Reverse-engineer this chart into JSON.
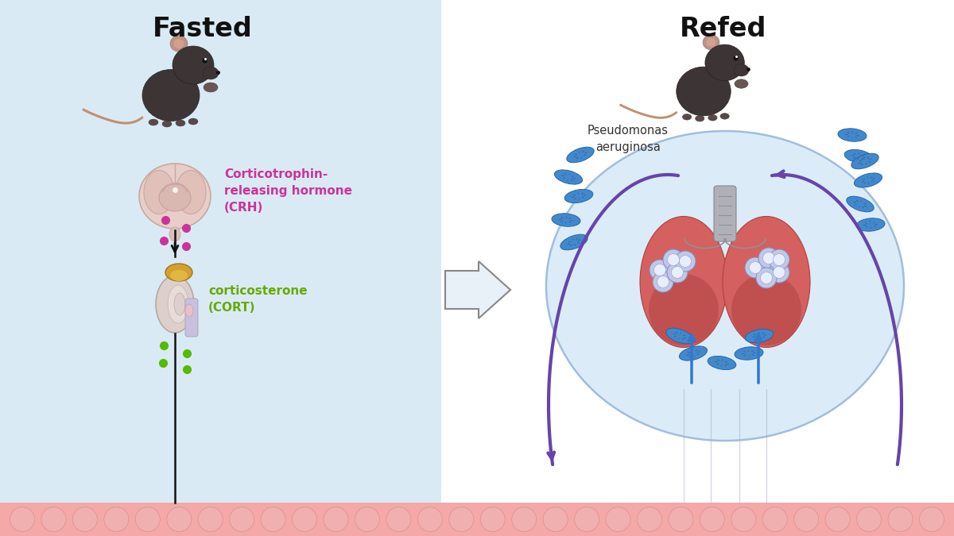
{
  "left_bg_color": "#daeaf5",
  "right_bg_color": "#ffffff",
  "bottom_strip_color": "#f5a8a8",
  "title_left": "Fasted",
  "title_right": "Refed",
  "title_fontsize": 24,
  "title_fontweight": "bold",
  "crh_text": "Corticotrophin-\nreleasing hormone\n(CRH)",
  "crh_color": "#cc3399",
  "cort_text": "corticosterone\n(CORT)",
  "cort_color": "#66aa00",
  "pseudo_text": "Pseudomonas\naeruginosa",
  "pseudo_color": "#333333",
  "pink_dot_color": "#cc3399",
  "green_dot_color": "#55bb00",
  "circle_fill": "#d8eaf8",
  "circle_edge": "#99b8d8",
  "purple_arrow_color": "#6644aa",
  "blue_arrow_color": "#3377cc",
  "bacteria_color": "#4488cc",
  "cell_fill": "#c8d0ee",
  "cell_inner": "#e8eeff",
  "mouse_body": "#3d3535",
  "mouse_ear": "#c09080",
  "mouse_tail": "#c09070",
  "lung_color": "#d46060",
  "lung_edge": "#b04040",
  "trachea_color": "#b0b0b8",
  "kidney_color": "#ddd0cc",
  "kidney_edge": "#b8a8a0",
  "adrenal_color": "#d4a030",
  "adrenal_edge": "#a07820",
  "brain_color": "#e8cec8",
  "brain_edge": "#c8a8a0"
}
